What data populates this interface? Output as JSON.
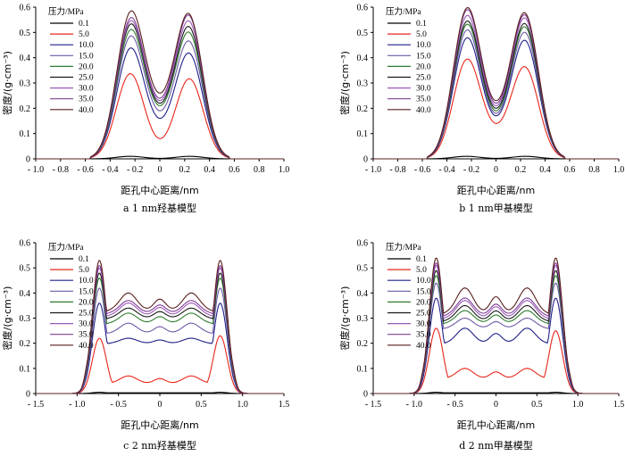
{
  "legend_title": "压力/MPa",
  "pressures": [
    "0.1",
    "5.0",
    "10.0",
    "15.0",
    "20.0",
    "25.0",
    "30.0",
    "35.0",
    "40.0"
  ],
  "colors": [
    "#000000",
    "#e8261c",
    "#20208a",
    "#6f5aa6",
    "#2f7d2f",
    "#1a1a1a",
    "#9b59b6",
    "#7e3f95",
    "#5a1f1f"
  ],
  "ylabel": "密度/(g·cm⁻³)",
  "xlabel": "距孔中心距离/nm",
  "chart_data": [
    {
      "type": "line",
      "caption": "a  1 nm羟基模型",
      "xlim": [
        -1.0,
        1.0
      ],
      "ylim": [
        0,
        0.6
      ],
      "xticks": [
        "- 1.0",
        "- 0.8",
        "- 0.6",
        "- 0.4",
        "- 0.2",
        "0",
        "0.2",
        "0.4",
        "0.6",
        "0.8",
        "1.0"
      ],
      "yticks": [
        "0",
        "0.1",
        "0.2",
        "0.3",
        "0.4",
        "0.5",
        "0.6"
      ],
      "series": [
        {
          "name": "0.1",
          "peak_left": 0.01,
          "peak_right": 0.01,
          "center": 0.002
        },
        {
          "name": "5.0",
          "peak_left": 0.33,
          "peak_right": 0.31,
          "center": 0.08
        },
        {
          "name": "10.0",
          "peak_left": 0.41,
          "peak_right": 0.39,
          "center": 0.16
        },
        {
          "name": "15.0",
          "peak_left": 0.45,
          "peak_right": 0.43,
          "center": 0.19
        },
        {
          "name": "20.0",
          "peak_left": 0.47,
          "peak_right": 0.46,
          "center": 0.21
        },
        {
          "name": "25.0",
          "peak_left": 0.49,
          "peak_right": 0.48,
          "center": 0.22
        },
        {
          "name": "30.0",
          "peak_left": 0.5,
          "peak_right": 0.5,
          "center": 0.23
        },
        {
          "name": "35.0",
          "peak_left": 0.51,
          "peak_right": 0.52,
          "center": 0.24
        },
        {
          "name": "40.0",
          "peak_left": 0.53,
          "peak_right": 0.52,
          "center": 0.26
        }
      ]
    },
    {
      "type": "line",
      "caption": "b  1 nm甲基模型",
      "xlim": [
        -1.0,
        1.0
      ],
      "ylim": [
        0,
        0.6
      ],
      "xticks": [
        "- 1.0",
        "- 0.8",
        "- 0.6",
        "- 0.4",
        "- 0.2",
        "0",
        "0.2",
        "0.4",
        "0.6",
        "0.8",
        "1.0"
      ],
      "yticks": [
        "0",
        "0.1",
        "0.2",
        "0.3",
        "0.4",
        "0.5",
        "0.6"
      ],
      "series": [
        {
          "name": "0.1",
          "peak_left": 0.01,
          "peak_right": 0.01,
          "center": 0.002
        },
        {
          "name": "5.0",
          "peak_left": 0.37,
          "peak_right": 0.34,
          "center": 0.14
        },
        {
          "name": "10.0",
          "peak_left": 0.45,
          "peak_right": 0.44,
          "center": 0.17
        },
        {
          "name": "15.0",
          "peak_left": 0.48,
          "peak_right": 0.47,
          "center": 0.18
        },
        {
          "name": "20.0",
          "peak_left": 0.5,
          "peak_right": 0.49,
          "center": 0.19
        },
        {
          "name": "25.0",
          "peak_left": 0.51,
          "peak_right": 0.5,
          "center": 0.2
        },
        {
          "name": "30.0",
          "peak_left": 0.53,
          "peak_right": 0.52,
          "center": 0.21
        },
        {
          "name": "35.0",
          "peak_left": 0.55,
          "peak_right": 0.53,
          "center": 0.22
        },
        {
          "name": "40.0",
          "peak_left": 0.555,
          "peak_right": 0.535,
          "center": 0.23
        }
      ]
    },
    {
      "type": "line",
      "caption": "c  2 nm羟基模型",
      "xlim": [
        -1.5,
        1.5
      ],
      "ylim": [
        0,
        0.6
      ],
      "xticks": [
        "- 1.5",
        "- 1.0",
        "- 0.5",
        "0",
        "0.5",
        "1.0",
        "1.5"
      ],
      "yticks": [
        "0",
        "0.1",
        "0.2",
        "0.3",
        "0.4",
        "0.5",
        "0.6"
      ],
      "series": [
        {
          "name": "0.1",
          "outer_left": 0.005,
          "outer_right": 0.005,
          "mid": 0.003,
          "mid_peak": 0.003
        },
        {
          "name": "5.0",
          "outer_left": 0.22,
          "outer_right": 0.23,
          "mid": 0.04,
          "mid_peak": 0.07
        },
        {
          "name": "10.0",
          "outer_left": 0.36,
          "outer_right": 0.36,
          "mid": 0.2,
          "mid_peak": 0.22
        },
        {
          "name": "15.0",
          "outer_left": 0.42,
          "outer_right": 0.42,
          "mid": 0.24,
          "mid_peak": 0.28
        },
        {
          "name": "20.0",
          "outer_left": 0.46,
          "outer_right": 0.46,
          "mid": 0.28,
          "mid_peak": 0.32
        },
        {
          "name": "25.0",
          "outer_left": 0.48,
          "outer_right": 0.48,
          "mid": 0.3,
          "mid_peak": 0.34
        },
        {
          "name": "30.0",
          "outer_left": 0.5,
          "outer_right": 0.5,
          "mid": 0.31,
          "mid_peak": 0.36
        },
        {
          "name": "35.0",
          "outer_left": 0.51,
          "outer_right": 0.51,
          "mid": 0.32,
          "mid_peak": 0.37
        },
        {
          "name": "40.0",
          "outer_left": 0.53,
          "outer_right": 0.53,
          "mid": 0.33,
          "mid_peak": 0.4
        }
      ]
    },
    {
      "type": "line",
      "caption": "d  2 nm甲基模型",
      "xlim": [
        -1.5,
        1.5
      ],
      "ylim": [
        0,
        0.6
      ],
      "xticks": [
        "- 1.5",
        "- 1.0",
        "- 0.5",
        "0",
        "0.5",
        "1.0",
        "1.5"
      ],
      "yticks": [
        "0",
        "0.1",
        "0.2",
        "0.3",
        "0.4",
        "0.5",
        "0.6"
      ],
      "series": [
        {
          "name": "0.1",
          "outer_left": 0.005,
          "outer_right": 0.005,
          "mid": 0.003,
          "mid_peak": 0.003
        },
        {
          "name": "5.0",
          "outer_left": 0.26,
          "outer_right": 0.25,
          "mid": 0.06,
          "mid_peak": 0.1
        },
        {
          "name": "10.0",
          "outer_left": 0.38,
          "outer_right": 0.38,
          "mid": 0.2,
          "mid_peak": 0.26
        },
        {
          "name": "15.0",
          "outer_left": 0.44,
          "outer_right": 0.44,
          "mid": 0.26,
          "mid_peak": 0.3
        },
        {
          "name": "20.0",
          "outer_left": 0.47,
          "outer_right": 0.47,
          "mid": 0.28,
          "mid_peak": 0.33
        },
        {
          "name": "25.0",
          "outer_left": 0.49,
          "outer_right": 0.49,
          "mid": 0.29,
          "mid_peak": 0.35
        },
        {
          "name": "30.0",
          "outer_left": 0.51,
          "outer_right": 0.51,
          "mid": 0.3,
          "mid_peak": 0.37
        },
        {
          "name": "35.0",
          "outer_left": 0.52,
          "outer_right": 0.52,
          "mid": 0.31,
          "mid_peak": 0.38
        },
        {
          "name": "40.0",
          "outer_left": 0.54,
          "outer_right": 0.54,
          "mid": 0.32,
          "mid_peak": 0.42
        }
      ]
    }
  ]
}
